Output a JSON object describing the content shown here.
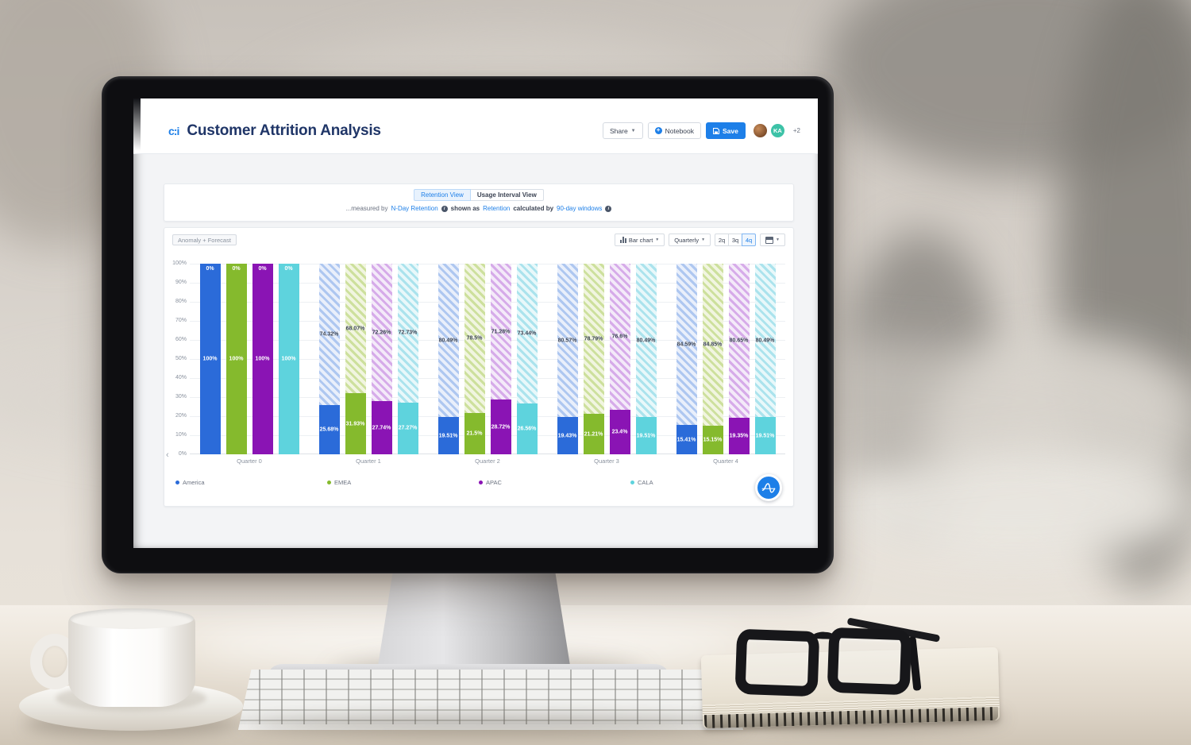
{
  "app": {
    "logo_text": "c:i",
    "title": "Customer Attrition Analysis",
    "toolbar": {
      "share_label": "Share",
      "notebook_label": "Notebook",
      "save_label": "Save",
      "avatar_initials": "KA",
      "overflow_count": "+2"
    },
    "tabs": [
      {
        "label": "Retention View"
      },
      {
        "label": "Usage Interval View"
      }
    ],
    "measure_bar": {
      "prefix": "...measured by",
      "metric_link": "N-Day Retention",
      "shown_as_label": "shown as",
      "shown_as_link": "Retention",
      "calculated_by_label": "calculated by",
      "calculated_by_link": "90-day windows"
    },
    "chart_controls": {
      "anomaly_chip": "Anomaly + Forecast",
      "chart_type": "Bar chart",
      "granularity": "Quarterly",
      "ranges": [
        "2q",
        "3q",
        "4q"
      ],
      "active_range": "4q"
    }
  },
  "chart_data": {
    "type": "bar",
    "stacked": true,
    "subtype": "percent-stacked-retention (solid = retained, hatched = churned)",
    "categories": [
      "Quarter 0",
      "Quarter 1",
      "Quarter 2",
      "Quarter 3",
      "Quarter 4"
    ],
    "series": [
      {
        "name": "America",
        "color": "#2b6bd9",
        "retained_pct": [
          100,
          25.68,
          19.51,
          19.43,
          15.41
        ],
        "retained_labels": [
          "100%",
          "25.68%",
          "19.51%",
          "19.43%",
          "15.41%"
        ],
        "churned_pct": [
          0,
          74.32,
          80.49,
          80.57,
          84.59
        ],
        "churned_labels": [
          "0%",
          "74.32%",
          "80.49%",
          "80.57%",
          "84.59%"
        ]
      },
      {
        "name": "EMEA",
        "color": "#85ba2d",
        "retained_pct": [
          100,
          31.93,
          21.5,
          21.21,
          15.15
        ],
        "retained_labels": [
          "100%",
          "31.93%",
          "21.5%",
          "21.21%",
          "15.15%"
        ],
        "churned_pct": [
          0,
          68.07,
          78.5,
          78.79,
          84.85
        ],
        "churned_labels": [
          "0%",
          "68.07%",
          "78.5%",
          "78.79%",
          "84.85%"
        ]
      },
      {
        "name": "APAC",
        "color": "#8a14b4",
        "retained_pct": [
          100,
          27.74,
          28.72,
          23.4,
          19.35
        ],
        "retained_labels": [
          "100%",
          "27.74%",
          "28.72%",
          "23.4%",
          "19.35%"
        ],
        "churned_pct": [
          0,
          72.26,
          71.28,
          76.6,
          80.65
        ],
        "churned_labels": [
          "0%",
          "72.26%",
          "71.28%",
          "76.6%",
          "80.65%"
        ]
      },
      {
        "name": "CALA",
        "color": "#5ed3dd",
        "retained_pct": [
          100,
          27.27,
          26.56,
          19.51,
          19.51
        ],
        "retained_labels": [
          "100%",
          "27.27%",
          "26.56%",
          "19.51%",
          "19.51%"
        ],
        "churned_pct": [
          0,
          72.73,
          73.44,
          80.49,
          80.49
        ],
        "churned_labels": [
          "0%",
          "72.73%",
          "73.44%",
          "80.49%",
          "80.49%"
        ]
      }
    ],
    "yticks": [
      "100%",
      "90%",
      "80%",
      "70%",
      "60%",
      "50%",
      "40%",
      "30%",
      "20%",
      "10%",
      "0%"
    ],
    "ylim": [
      0,
      100
    ],
    "grid": true,
    "legend": [
      "America",
      "EMEA",
      "APAC",
      "CALA"
    ],
    "legend_position": "bottom"
  }
}
